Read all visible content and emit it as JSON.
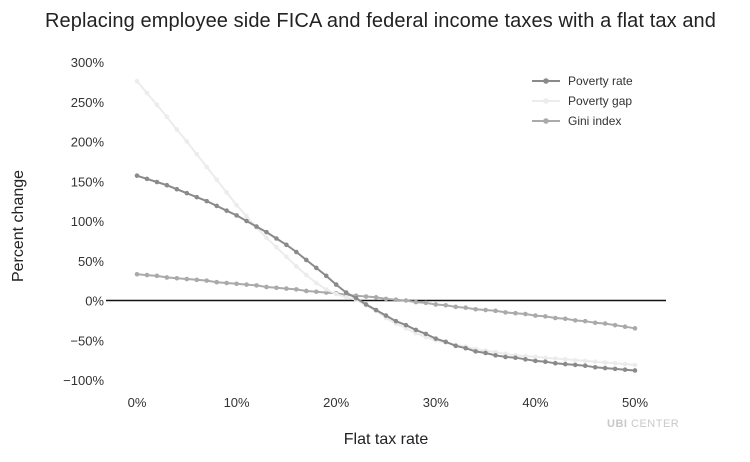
{
  "chart_data": {
    "type": "line",
    "title": "Replacing employee side FICA and federal income taxes with a flat tax and",
    "xlabel": "Flat tax rate",
    "ylabel": "Percent change",
    "xlim": [
      0,
      50
    ],
    "ylim": [
      -100,
      300
    ],
    "x_ticks": [
      0,
      10,
      20,
      30,
      40,
      50
    ],
    "x_tick_labels": [
      "0%",
      "10%",
      "20%",
      "30%",
      "40%",
      "50%"
    ],
    "y_ticks": [
      300,
      250,
      200,
      150,
      100,
      50,
      0,
      -50,
      -100
    ],
    "y_tick_labels": [
      "300%",
      "250%",
      "200%",
      "150%",
      "100%",
      "50%",
      "0%",
      "−50%",
      "−100%"
    ],
    "legend_position": "top-right",
    "zero_line": true,
    "x": [
      0,
      1,
      2,
      3,
      4,
      5,
      6,
      7,
      8,
      9,
      10,
      11,
      12,
      13,
      14,
      15,
      16,
      17,
      18,
      19,
      20,
      21,
      22,
      23,
      24,
      25,
      26,
      27,
      28,
      29,
      30,
      31,
      32,
      33,
      34,
      35,
      36,
      37,
      38,
      39,
      40,
      41,
      42,
      43,
      44,
      45,
      46,
      47,
      48,
      49,
      50
    ],
    "series": [
      {
        "name": "Poverty rate",
        "color": "#8a8a8a",
        "values": [
          157,
          153,
          149,
          145,
          140,
          135,
          130,
          125,
          119,
          113,
          107,
          100,
          93,
          86,
          78,
          70,
          61,
          51,
          41,
          31,
          20,
          10,
          3,
          -5,
          -12,
          -19,
          -26,
          -31,
          -37,
          -42,
          -48,
          -52,
          -57,
          -60,
          -64,
          -66,
          -69,
          -71,
          -72,
          -74,
          -76,
          -77,
          -79,
          -80,
          -81,
          -82,
          -84,
          -85,
          -86,
          -87,
          -88
        ]
      },
      {
        "name": "Poverty gap",
        "color": "#ececec",
        "values": [
          276,
          261,
          246,
          231,
          215,
          200,
          184,
          168,
          152,
          136,
          120,
          106,
          92,
          79,
          67,
          55,
          43,
          32,
          22,
          14,
          8,
          4,
          1,
          -6,
          -13,
          -22,
          -29,
          -35,
          -41,
          -46,
          -50,
          -53,
          -56,
          -58,
          -61,
          -63,
          -65,
          -67,
          -69,
          -70,
          -71,
          -72,
          -73,
          -74,
          -75,
          -76,
          -77,
          -78,
          -79,
          -80,
          -81
        ]
      },
      {
        "name": "Gini index",
        "color": "#aaaaaa",
        "values": [
          33,
          32,
          31,
          29,
          28,
          27,
          26,
          25,
          23,
          22,
          21,
          20,
          19,
          17,
          16,
          15,
          14,
          12,
          11,
          10,
          9,
          7,
          6,
          5,
          4,
          2,
          1,
          0,
          -2,
          -3,
          -5,
          -6,
          -8,
          -9,
          -11,
          -12,
          -13,
          -15,
          -16,
          -17,
          -19,
          -20,
          -22,
          -23,
          -25,
          -26,
          -28,
          -29,
          -31,
          -33,
          -35
        ]
      }
    ]
  },
  "watermark": {
    "bold": "UBI",
    "rest": " CENTER"
  }
}
